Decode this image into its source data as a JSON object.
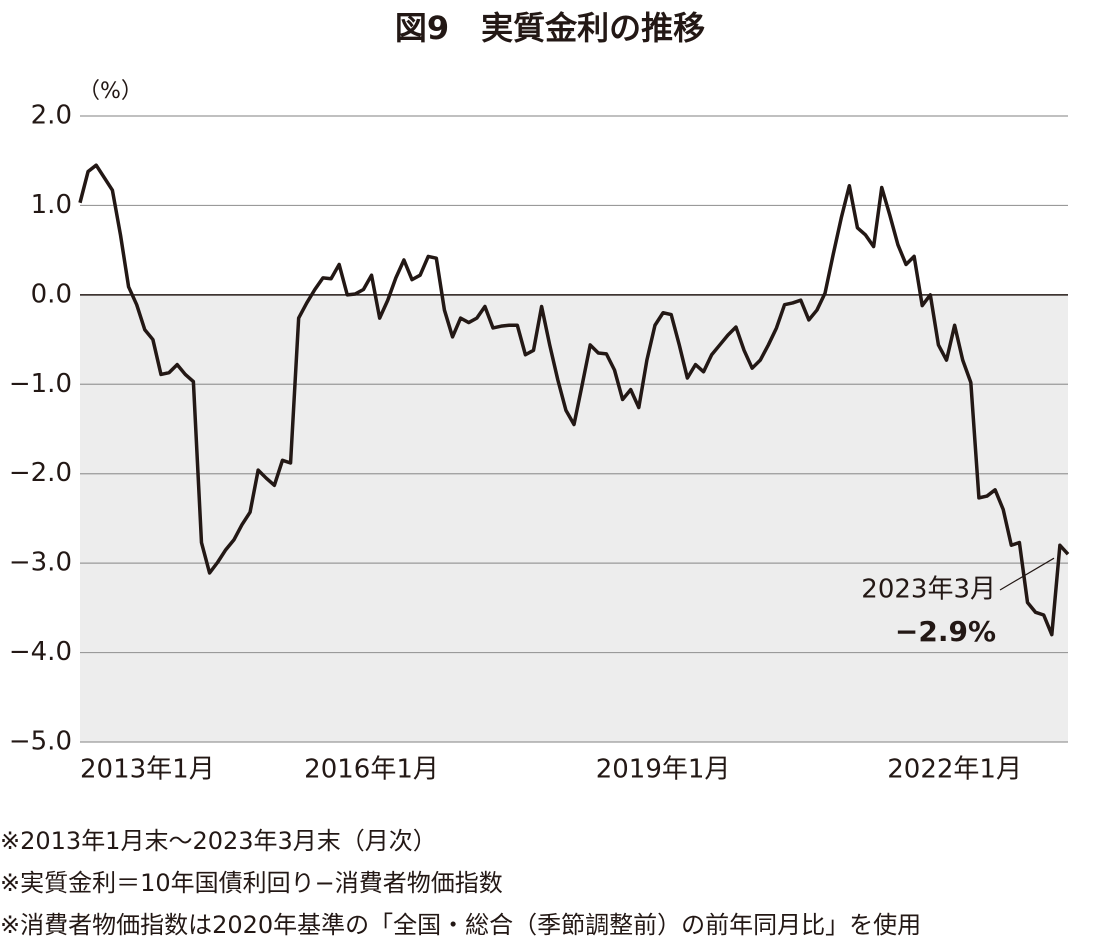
{
  "chart_data": {
    "type": "line",
    "title": "図9　実質金利の推移",
    "ylabel": "（%）",
    "categories": [
      "2013年1月",
      null,
      null,
      null,
      null,
      null,
      null,
      null,
      null,
      null,
      null,
      null,
      null,
      null,
      null,
      null,
      null,
      null,
      null,
      null,
      null,
      null,
      null,
      null,
      null,
      null,
      null,
      null,
      null,
      null,
      null,
      null,
      null,
      null,
      null,
      null,
      "2016年1月",
      null,
      null,
      null,
      null,
      null,
      null,
      null,
      null,
      null,
      null,
      null,
      null,
      null,
      null,
      null,
      null,
      null,
      null,
      null,
      null,
      null,
      null,
      null,
      null,
      null,
      null,
      null,
      null,
      null,
      null,
      null,
      null,
      null,
      null,
      null,
      "2019年1月",
      null,
      null,
      null,
      null,
      null,
      null,
      null,
      null,
      null,
      null,
      null,
      null,
      null,
      null,
      null,
      null,
      null,
      null,
      null,
      null,
      null,
      null,
      null,
      null,
      null,
      null,
      null,
      null,
      null,
      null,
      null,
      null,
      null,
      null,
      null,
      "2022年1月",
      null,
      null,
      null,
      null,
      null,
      null,
      null,
      null,
      null,
      null,
      null,
      null,
      null,
      null
    ],
    "series": [
      {
        "name": "実質金利",
        "color": "#231815",
        "values": [
          1.03,
          1.38,
          1.45,
          1.31,
          1.17,
          0.67,
          0.09,
          -0.11,
          -0.39,
          -0.5,
          -0.89,
          -0.87,
          -0.78,
          -0.89,
          -0.97,
          -2.77,
          -3.11,
          -2.99,
          -2.85,
          -2.74,
          -2.57,
          -2.43,
          -1.96,
          -2.05,
          -2.13,
          -1.85,
          -1.88,
          -0.26,
          -0.09,
          0.06,
          0.19,
          0.18,
          0.34,
          0.0,
          0.01,
          0.06,
          0.22,
          -0.26,
          -0.06,
          0.19,
          0.39,
          0.17,
          0.22,
          0.43,
          0.41,
          -0.17,
          -0.47,
          -0.26,
          -0.31,
          -0.26,
          -0.13,
          -0.37,
          -0.35,
          -0.34,
          -0.34,
          -0.67,
          -0.62,
          -0.13,
          -0.56,
          -0.95,
          -1.29,
          -1.45,
          -1.01,
          -0.56,
          -0.65,
          -0.66,
          -0.84,
          -1.17,
          -1.06,
          -1.26,
          -0.73,
          -0.34,
          -0.2,
          -0.22,
          -0.56,
          -0.93,
          -0.78,
          -0.86,
          -0.67,
          -0.56,
          -0.45,
          -0.36,
          -0.62,
          -0.82,
          -0.73,
          -0.56,
          -0.37,
          -0.11,
          -0.09,
          -0.06,
          -0.28,
          -0.17,
          0.02,
          0.45,
          0.86,
          1.22,
          0.75,
          0.67,
          0.54,
          1.2,
          0.89,
          0.56,
          0.34,
          0.43,
          -0.12,
          0.0,
          -0.56,
          -0.73,
          -0.34,
          -0.73,
          -0.98,
          -2.27,
          -2.25,
          -2.18,
          -2.4,
          -2.8,
          -2.77,
          -3.44,
          -3.55,
          -3.58,
          -3.8,
          -2.8,
          -2.9
        ]
      }
    ],
    "annotation": {
      "label": "2023年3月",
      "value_label": "−2.9%"
    },
    "ylim": [
      -5,
      2
    ],
    "yticks": [
      {
        "value": 2,
        "label": "2.0"
      },
      {
        "value": 1,
        "label": "1.0"
      },
      {
        "value": 0,
        "label": "0.0"
      },
      {
        "value": -1,
        "label": "−1.0"
      },
      {
        "value": -2,
        "label": "−2.0"
      },
      {
        "value": -3,
        "label": "−3.0"
      },
      {
        "value": -4,
        "label": "−4.0"
      },
      {
        "value": -5,
        "label": "−5.0"
      }
    ],
    "grid": true,
    "notes": [
      "※2013年1月末〜2023年3月末（月次）",
      "※実質金利＝10年国債利回り−消費者物価指数",
      "※消費者物価指数は2020年基準の「全国・総合（季節調整前）の前年同月比」を使用"
    ]
  }
}
